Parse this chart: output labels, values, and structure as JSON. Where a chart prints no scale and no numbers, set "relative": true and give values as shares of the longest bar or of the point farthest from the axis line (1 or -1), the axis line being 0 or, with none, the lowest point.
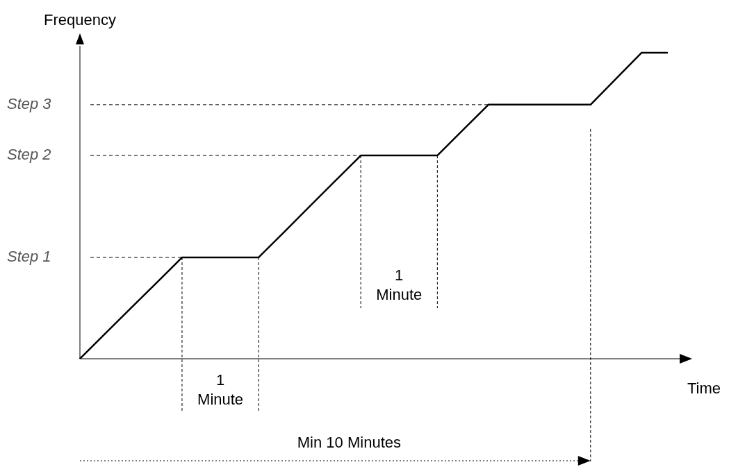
{
  "chart_data": {
    "type": "line",
    "relative": true,
    "xlabel": "Time",
    "ylabel": "Frequency",
    "categories": [
      null,
      null,
      null,
      null,
      null,
      null,
      null,
      null,
      null,
      null,
      null,
      null,
      null,
      null,
      null,
      null,
      null,
      null,
      null,
      null,
      null,
      null,
      null,
      null
    ],
    "series": [
      {
        "color": "#000000",
        "values": [
          0,
          0.083,
          0.166,
          0.248,
          0.331,
          0.331,
          0.331,
          0.331,
          0.414,
          0.498,
          0.581,
          0.664,
          0.664,
          0.664,
          0.664,
          0.747,
          0.83,
          0.83,
          0.83,
          0.83,
          0.83,
          0.915,
          1,
          1
        ]
      }
    ],
    "ref_lines": [
      {
        "axis": "y",
        "value": 0.331,
        "label": "Step 1",
        "line_style": "dashed"
      },
      {
        "axis": "y",
        "value": 0.664,
        "label": "Step 2",
        "line_style": "dashed"
      },
      {
        "axis": "y",
        "value": 0.83,
        "label": "Step 3",
        "line_style": "dashed"
      }
    ],
    "annotations": [
      "1 Minute",
      "1 Minute",
      "Min 10 Minutes"
    ]
  }
}
